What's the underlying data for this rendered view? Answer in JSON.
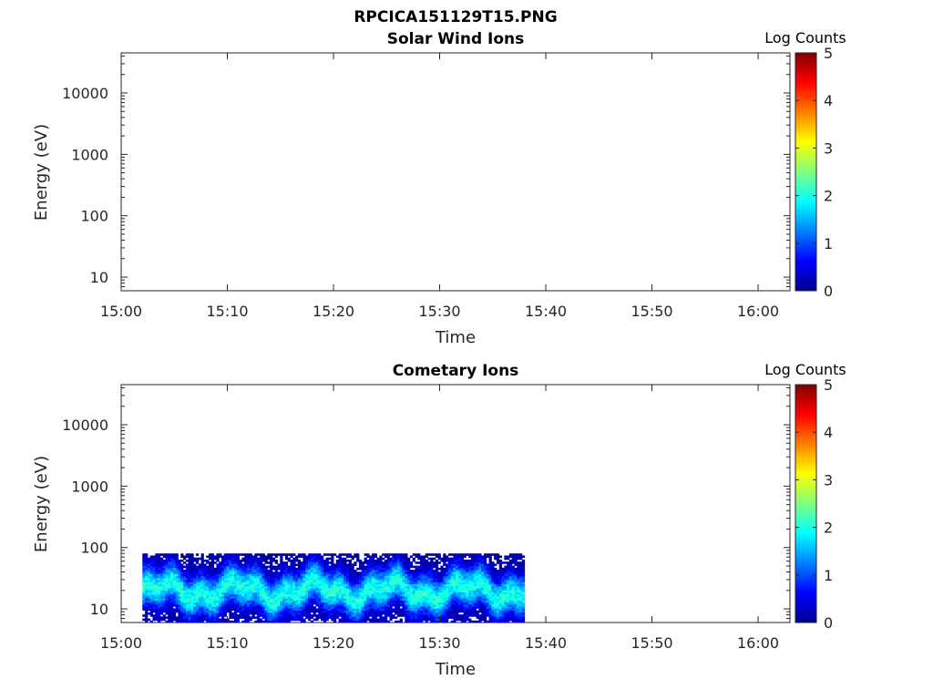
{
  "figure_title": "RPCICA151129T15.PNG",
  "colors": {
    "colormap": [
      "#00008f",
      "#0000ff",
      "#0080ff",
      "#00ffff",
      "#80ff80",
      "#ffff00",
      "#ff8000",
      "#ff0000",
      "#800000"
    ],
    "axes": "#262626",
    "background": "#ffffff"
  },
  "chart_data": [
    {
      "id": "solar",
      "type": "heatmap",
      "title": "Solar Wind Ions",
      "xlabel": "Time",
      "ylabel": "Energy (eV)",
      "yscale": "log",
      "ylim": [
        6,
        45000
      ],
      "xlim": [
        "15:00",
        "16:03"
      ],
      "xticks": [
        "15:00",
        "15:10",
        "15:20",
        "15:30",
        "15:40",
        "15:50",
        "16:00"
      ],
      "yticks": [
        "10",
        "100",
        "1000",
        "10000"
      ],
      "colorbar": {
        "label": "Log Counts",
        "ticks": [
          "0",
          "1",
          "2",
          "3",
          "4",
          "5"
        ],
        "range": [
          0,
          5
        ]
      },
      "coverage": null
    },
    {
      "id": "cometary",
      "type": "heatmap",
      "title": "Cometary Ions",
      "xlabel": "Time",
      "ylabel": "Energy (eV)",
      "yscale": "log",
      "ylim": [
        6,
        45000
      ],
      "xlim": [
        "15:00",
        "16:03"
      ],
      "xticks": [
        "15:00",
        "15:10",
        "15:20",
        "15:30",
        "15:40",
        "15:50",
        "16:00"
      ],
      "yticks": [
        "10",
        "100",
        "1000",
        "10000"
      ],
      "colorbar": {
        "label": "Log Counts",
        "ticks": [
          "0",
          "1",
          "2",
          "3",
          "4",
          "5"
        ],
        "range": [
          0,
          5
        ]
      },
      "coverage": {
        "t_start": "15:02",
        "t_end": "15:38",
        "e_min": 6,
        "e_max": 80,
        "peak_energy_ev": 20,
        "peak_log_counts": 2.0
      }
    }
  ]
}
